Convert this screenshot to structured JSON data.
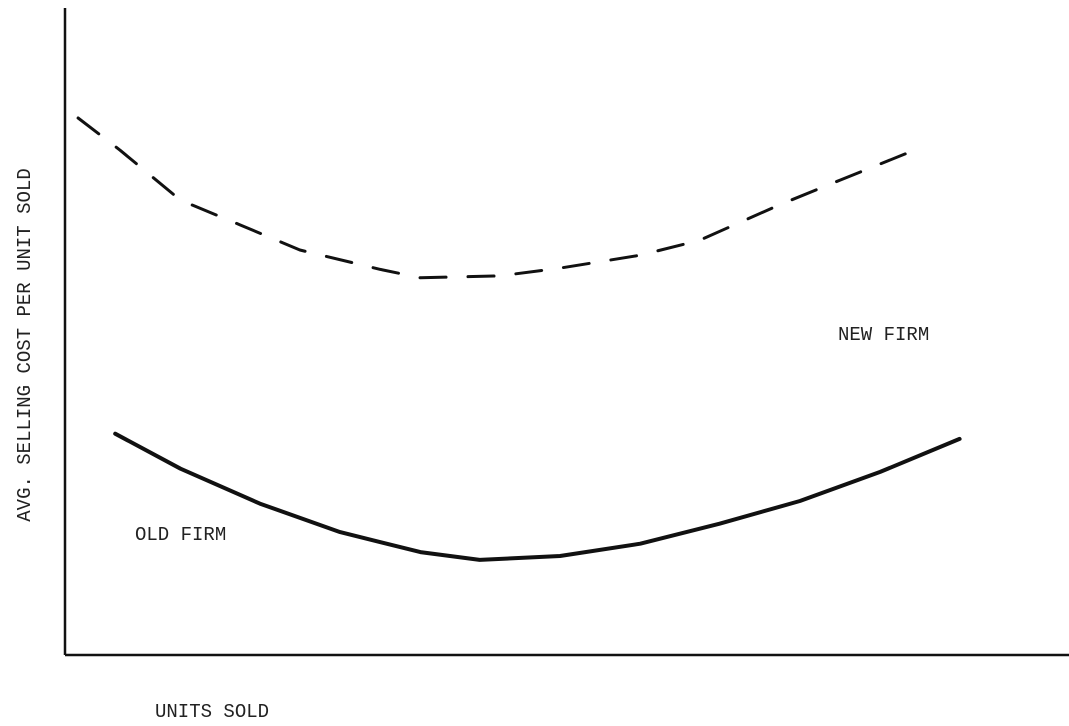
{
  "chart_data": {
    "type": "line",
    "xlabel": "UNITS SOLD",
    "ylabel": "AVG. SELLING COST PER UNIT SOLD",
    "xlim": [
      0,
      100
    ],
    "ylim": [
      0,
      100
    ],
    "series": [
      {
        "name": "NEW FIRM",
        "color": "#111111",
        "style": "dashed",
        "x": [
          1.3,
          5.5,
          11.5,
          17.4,
          23.4,
          31.4,
          35.4,
          43.3,
          49.3,
          57.3,
          63.2,
          71.2,
          77.2,
          85.2
        ],
        "values": [
          83.0,
          78.0,
          70.3,
          66.5,
          62.6,
          59.6,
          58.3,
          58.6,
          59.8,
          61.8,
          64.1,
          69.6,
          73.4,
          78.4
        ]
      },
      {
        "name": "OLD FIRM",
        "color": "#111111",
        "style": "solid",
        "x": [
          5.0,
          11.5,
          19.4,
          27.4,
          35.4,
          41.3,
          49.3,
          57.3,
          65.2,
          73.2,
          81.2,
          89.1
        ],
        "values": [
          34.2,
          28.8,
          23.4,
          19.0,
          15.9,
          14.7,
          15.3,
          17.2,
          20.3,
          23.8,
          28.3,
          33.4
        ]
      }
    ]
  }
}
